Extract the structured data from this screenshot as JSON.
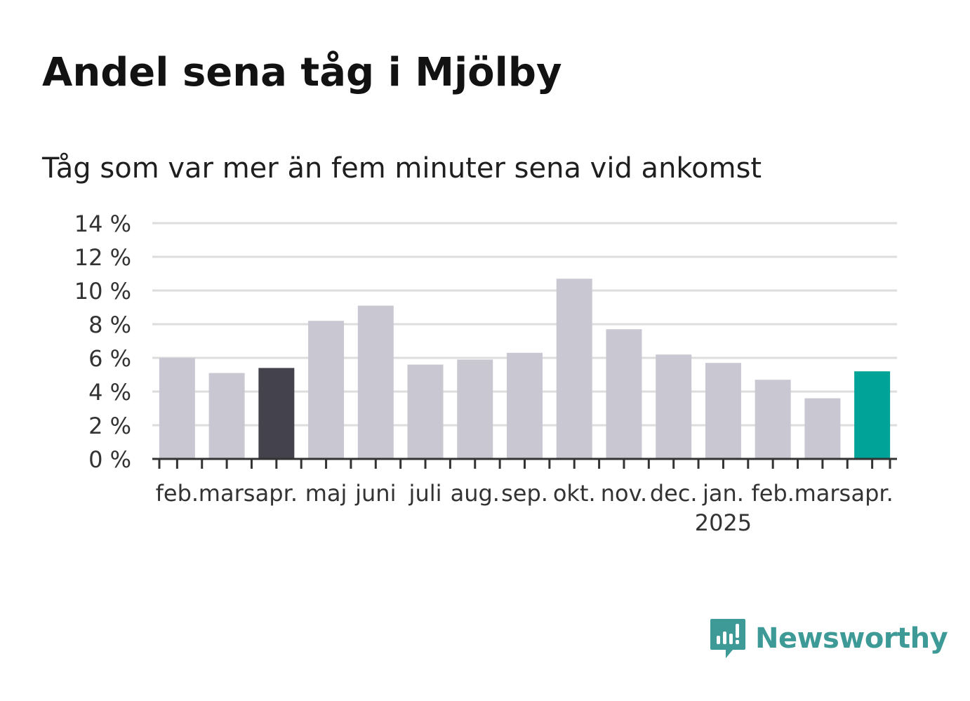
{
  "header": {
    "title": "Andel sena tåg i Mjölby",
    "subtitle": "Tåg som var mer än fem minuter sena vid ankomst"
  },
  "brand": {
    "name": "Newsworthy",
    "icon": "newsworthy-logo-icon",
    "color": "#3d9a96"
  },
  "chart_data": {
    "type": "bar",
    "categories": [
      "feb.",
      "mars",
      "apr.",
      "maj",
      "juni",
      "juli",
      "aug.",
      "sep.",
      "okt.",
      "nov.",
      "dec.",
      "jan.",
      "feb.",
      "mars",
      "apr."
    ],
    "category_sublabels": [
      "",
      "",
      "",
      "",
      "",
      "",
      "",
      "",
      "",
      "",
      "",
      "2025",
      "",
      "",
      ""
    ],
    "values": [
      6.0,
      5.1,
      5.4,
      8.2,
      9.1,
      5.6,
      5.9,
      6.3,
      10.7,
      7.7,
      6.2,
      5.7,
      4.7,
      3.6,
      5.2
    ],
    "bar_colors": [
      "#c9c8d2",
      "#c9c8d2",
      "#43424d",
      "#c9c8d2",
      "#c9c8d2",
      "#c9c8d2",
      "#c9c8d2",
      "#c9c8d2",
      "#c9c8d2",
      "#c9c8d2",
      "#c9c8d2",
      "#c9c8d2",
      "#c9c8d2",
      "#c9c8d2",
      "#00a398"
    ],
    "y_ticks": [
      "0 %",
      "2 %",
      "4 %",
      "6 %",
      "8 %",
      "10 %",
      "12 %",
      "14 %"
    ],
    "ylim": [
      0,
      14
    ],
    "grid": true,
    "legend": "none",
    "title": "Andel sena tåg i Mjölby",
    "subtitle": "Tåg som var mer än fem minuter sena vid ankomst",
    "xlabel": "",
    "ylabel": "",
    "colors": {
      "grid": "#dddddd",
      "axis": "#333333"
    }
  }
}
